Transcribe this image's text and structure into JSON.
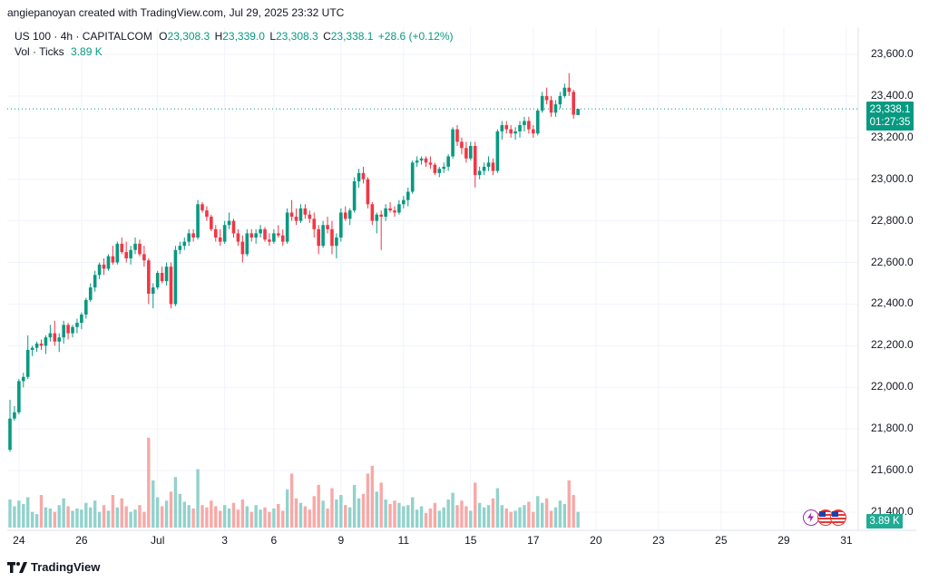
{
  "header": {
    "attribution": "angiepanoyan created with TradingView.com, Jul 29, 2025 23:32 UTC"
  },
  "legend": {
    "symbol": "US 100 · 4h · CAPITALCOM",
    "o_label": "O",
    "o_value": "23,308.3",
    "h_label": "H",
    "h_value": "23,339.0",
    "l_label": "L",
    "l_value": "23,308.3",
    "c_label": "C",
    "c_value": "23,338.1",
    "change": "+28.6 (+0.12%)",
    "vol_label": "Vol · Ticks",
    "vol_value": "3.89 K"
  },
  "price_tag": {
    "price": "23,338.1",
    "countdown": "01:27:35"
  },
  "volume_tag": "3.89 K",
  "footer": {
    "brand": "TradingView"
  },
  "colors": {
    "up": "#089981",
    "down": "#f23645",
    "vol_up": "#92d2cc",
    "vol_down": "#f7a9a7",
    "grid": "#f0f3fa"
  },
  "chart_data": {
    "type": "candlestick",
    "title": "US 100 · 4h · CAPITALCOM",
    "y_ticks": [
      "23,600.0",
      "23,400.0",
      "23,200.0",
      "23,000.0",
      "22,800.0",
      "22,600.0",
      "22,400.0",
      "22,200.0",
      "22,000.0",
      "21,800.0",
      "21,600.0",
      "21,400.0"
    ],
    "y_tick_values": [
      23600,
      23400,
      23200,
      23000,
      22800,
      22600,
      22400,
      22200,
      22000,
      21800,
      21600,
      21400
    ],
    "ylim": [
      21330,
      23700
    ],
    "x_ticks": [
      {
        "label": "24",
        "index": 2
      },
      {
        "label": "26",
        "index": 16
      },
      {
        "label": "Jul",
        "index": 33
      },
      {
        "label": "3",
        "index": 48
      },
      {
        "label": "6",
        "index": 59
      },
      {
        "label": "9",
        "index": 74
      },
      {
        "label": "11",
        "index": 88
      },
      {
        "label": "15",
        "index": 103
      },
      {
        "label": "17",
        "index": 117
      },
      {
        "label": "20",
        "index": 131
      },
      {
        "label": "23",
        "index": 145
      },
      {
        "label": "25",
        "index": 159
      },
      {
        "label": "29",
        "index": 173
      },
      {
        "label": "31",
        "index": 187
      }
    ],
    "last_price": 23338.1,
    "volume_max": 1.0,
    "volume_axis": "relative",
    "candles": [
      [
        21700,
        21940,
        21690,
        21850,
        0.25
      ],
      [
        21850,
        21910,
        21840,
        21880,
        0.19
      ],
      [
        21880,
        22040,
        21870,
        22030,
        0.24
      ],
      [
        22030,
        22070,
        22000,
        22050,
        0.21
      ],
      [
        22050,
        22250,
        22040,
        22180,
        0.27
      ],
      [
        22180,
        22200,
        22150,
        22190,
        0.14
      ],
      [
        22190,
        22220,
        22170,
        22210,
        0.12
      ],
      [
        22210,
        22230,
        22180,
        22200,
        0.29
      ],
      [
        22200,
        22250,
        22160,
        22240,
        0.18
      ],
      [
        22240,
        22300,
        22220,
        22260,
        0.17
      ],
      [
        22260,
        22320,
        22200,
        22220,
        0.14
      ],
      [
        22220,
        22260,
        22170,
        22240,
        0.2
      ],
      [
        22240,
        22320,
        22210,
        22300,
        0.26
      ],
      [
        22300,
        22310,
        22230,
        22260,
        0.19
      ],
      [
        22260,
        22300,
        22240,
        22290,
        0.15
      ],
      [
        22290,
        22330,
        22260,
        22310,
        0.17
      ],
      [
        22310,
        22360,
        22280,
        22350,
        0.16
      ],
      [
        22350,
        22430,
        22330,
        22420,
        0.22
      ],
      [
        22420,
        22500,
        22410,
        22480,
        0.18
      ],
      [
        22480,
        22560,
        22460,
        22540,
        0.24
      ],
      [
        22540,
        22600,
        22520,
        22590,
        0.14
      ],
      [
        22590,
        22620,
        22540,
        22570,
        0.2
      ],
      [
        22570,
        22640,
        22560,
        22630,
        0.15
      ],
      [
        22630,
        22680,
        22590,
        22600,
        0.29
      ],
      [
        22600,
        22700,
        22590,
        22690,
        0.18
      ],
      [
        22690,
        22720,
        22640,
        22650,
        0.26
      ],
      [
        22650,
        22700,
        22600,
        22620,
        0.19
      ],
      [
        22620,
        22680,
        22590,
        22660,
        0.14
      ],
      [
        22660,
        22720,
        22640,
        22690,
        0.16
      ],
      [
        22690,
        22710,
        22630,
        22640,
        0.2
      ],
      [
        22640,
        22680,
        22580,
        22610,
        0.14
      ],
      [
        22610,
        22620,
        22400,
        22450,
        0.8
      ],
      [
        22450,
        22500,
        22380,
        22480,
        0.42
      ],
      [
        22480,
        22560,
        22470,
        22550,
        0.27
      ],
      [
        22550,
        22580,
        22500,
        22510,
        0.19
      ],
      [
        22510,
        22600,
        22490,
        22580,
        0.24
      ],
      [
        22580,
        22600,
        22380,
        22400,
        0.32
      ],
      [
        22400,
        22680,
        22390,
        22660,
        0.45
      ],
      [
        22660,
        22700,
        22640,
        22680,
        0.3
      ],
      [
        22680,
        22720,
        22660,
        22700,
        0.23
      ],
      [
        22700,
        22760,
        22680,
        22740,
        0.2
      ],
      [
        22740,
        22760,
        22700,
        22720,
        0.17
      ],
      [
        22720,
        22900,
        22710,
        22880,
        0.52
      ],
      [
        22880,
        22890,
        22840,
        22850,
        0.2
      ],
      [
        22850,
        22870,
        22800,
        22820,
        0.18
      ],
      [
        22820,
        22830,
        22750,
        22760,
        0.24
      ],
      [
        22760,
        22780,
        22700,
        22720,
        0.19
      ],
      [
        22720,
        22760,
        22680,
        22700,
        0.15
      ],
      [
        22700,
        22800,
        22690,
        22780,
        0.2
      ],
      [
        22780,
        22840,
        22760,
        22800,
        0.17
      ],
      [
        22800,
        22810,
        22720,
        22740,
        0.22
      ],
      [
        22740,
        22760,
        22680,
        22700,
        0.16
      ],
      [
        22700,
        22730,
        22600,
        22640,
        0.25
      ],
      [
        22640,
        22760,
        22630,
        22740,
        0.19
      ],
      [
        22740,
        22760,
        22700,
        22720,
        0.14
      ],
      [
        22720,
        22760,
        22690,
        22740,
        0.2
      ],
      [
        22740,
        22780,
        22720,
        22760,
        0.16
      ],
      [
        22760,
        22770,
        22700,
        22710,
        0.18
      ],
      [
        22710,
        22740,
        22680,
        22700,
        0.14
      ],
      [
        22700,
        22760,
        22690,
        22740,
        0.17
      ],
      [
        22740,
        22780,
        22720,
        22730,
        0.21
      ],
      [
        22730,
        22760,
        22680,
        22700,
        0.15
      ],
      [
        22700,
        22860,
        22690,
        22840,
        0.34
      ],
      [
        22840,
        22900,
        22800,
        22820,
        0.48
      ],
      [
        22820,
        22860,
        22780,
        22800,
        0.26
      ],
      [
        22800,
        22880,
        22790,
        22860,
        0.22
      ],
      [
        22860,
        22880,
        22810,
        22830,
        0.19
      ],
      [
        22830,
        22850,
        22790,
        22810,
        0.16
      ],
      [
        22810,
        22840,
        22720,
        22760,
        0.28
      ],
      [
        22760,
        22780,
        22640,
        22680,
        0.38
      ],
      [
        22680,
        22800,
        22670,
        22780,
        0.24
      ],
      [
        22780,
        22820,
        22740,
        22760,
        0.17
      ],
      [
        22760,
        22800,
        22640,
        22680,
        0.35
      ],
      [
        22680,
        22740,
        22620,
        22720,
        0.25
      ],
      [
        22720,
        22860,
        22700,
        22840,
        0.29
      ],
      [
        22840,
        22870,
        22800,
        22810,
        0.2
      ],
      [
        22810,
        22860,
        22780,
        22850,
        0.18
      ],
      [
        22850,
        23010,
        22840,
        22990,
        0.38
      ],
      [
        22990,
        23050,
        22960,
        23030,
        0.26
      ],
      [
        23030,
        23060,
        22980,
        23000,
        0.3
      ],
      [
        23000,
        23010,
        22860,
        22880,
        0.48
      ],
      [
        22880,
        22890,
        22780,
        22800,
        0.55
      ],
      [
        22800,
        22840,
        22740,
        22830,
        0.32
      ],
      [
        22830,
        22850,
        22660,
        22820,
        0.4
      ],
      [
        22820,
        22880,
        22800,
        22860,
        0.25
      ],
      [
        22860,
        22890,
        22840,
        22850,
        0.21
      ],
      [
        22850,
        22870,
        22820,
        22840,
        0.24
      ],
      [
        22840,
        22900,
        22830,
        22880,
        0.22
      ],
      [
        22880,
        22920,
        22860,
        22900,
        0.19
      ],
      [
        22900,
        22960,
        22870,
        22940,
        0.2
      ],
      [
        22940,
        23090,
        22930,
        23080,
        0.27
      ],
      [
        23080,
        23110,
        23060,
        23090,
        0.16
      ],
      [
        23090,
        23110,
        23070,
        23100,
        0.19
      ],
      [
        23100,
        23110,
        23060,
        23080,
        0.13
      ],
      [
        23080,
        23110,
        23050,
        23070,
        0.17
      ],
      [
        23070,
        23080,
        23020,
        23030,
        0.22
      ],
      [
        23030,
        23060,
        23010,
        23050,
        0.15
      ],
      [
        23050,
        23080,
        23030,
        23060,
        0.18
      ],
      [
        23060,
        23120,
        23040,
        23110,
        0.25
      ],
      [
        23110,
        23250,
        23100,
        23240,
        0.31
      ],
      [
        23240,
        23260,
        23160,
        23180,
        0.2
      ],
      [
        23180,
        23200,
        23120,
        23150,
        0.24
      ],
      [
        23150,
        23180,
        23080,
        23100,
        0.19
      ],
      [
        23100,
        23180,
        23090,
        23160,
        0.15
      ],
      [
        23160,
        23180,
        22960,
        23020,
        0.4
      ],
      [
        23020,
        23060,
        23000,
        23040,
        0.22
      ],
      [
        23040,
        23080,
        23020,
        23060,
        0.18
      ],
      [
        23060,
        23110,
        23040,
        23080,
        0.2
      ],
      [
        23080,
        23100,
        23020,
        23040,
        0.26
      ],
      [
        23040,
        23240,
        23030,
        23230,
        0.35
      ],
      [
        23230,
        23280,
        23190,
        23260,
        0.2
      ],
      [
        23260,
        23280,
        23220,
        23240,
        0.17
      ],
      [
        23240,
        23260,
        23200,
        23220,
        0.14
      ],
      [
        23220,
        23250,
        23190,
        23230,
        0.15
      ],
      [
        23230,
        23280,
        23200,
        23260,
        0.18
      ],
      [
        23260,
        23300,
        23230,
        23280,
        0.2
      ],
      [
        23280,
        23300,
        23220,
        23240,
        0.23
      ],
      [
        23240,
        23260,
        23200,
        23220,
        0.14
      ],
      [
        23220,
        23340,
        23210,
        23330,
        0.28
      ],
      [
        23330,
        23420,
        23320,
        23400,
        0.22
      ],
      [
        23400,
        23440,
        23360,
        23380,
        0.26
      ],
      [
        23380,
        23400,
        23300,
        23320,
        0.15
      ],
      [
        23320,
        23380,
        23300,
        23360,
        0.18
      ],
      [
        23360,
        23420,
        23340,
        23400,
        0.24
      ],
      [
        23400,
        23460,
        23390,
        23440,
        0.21
      ],
      [
        23440,
        23510,
        23400,
        23420,
        0.42
      ],
      [
        23420,
        23430,
        23290,
        23310,
        0.29
      ],
      [
        23308.3,
        23339.0,
        23308.3,
        23338.1,
        0.14
      ]
    ]
  }
}
